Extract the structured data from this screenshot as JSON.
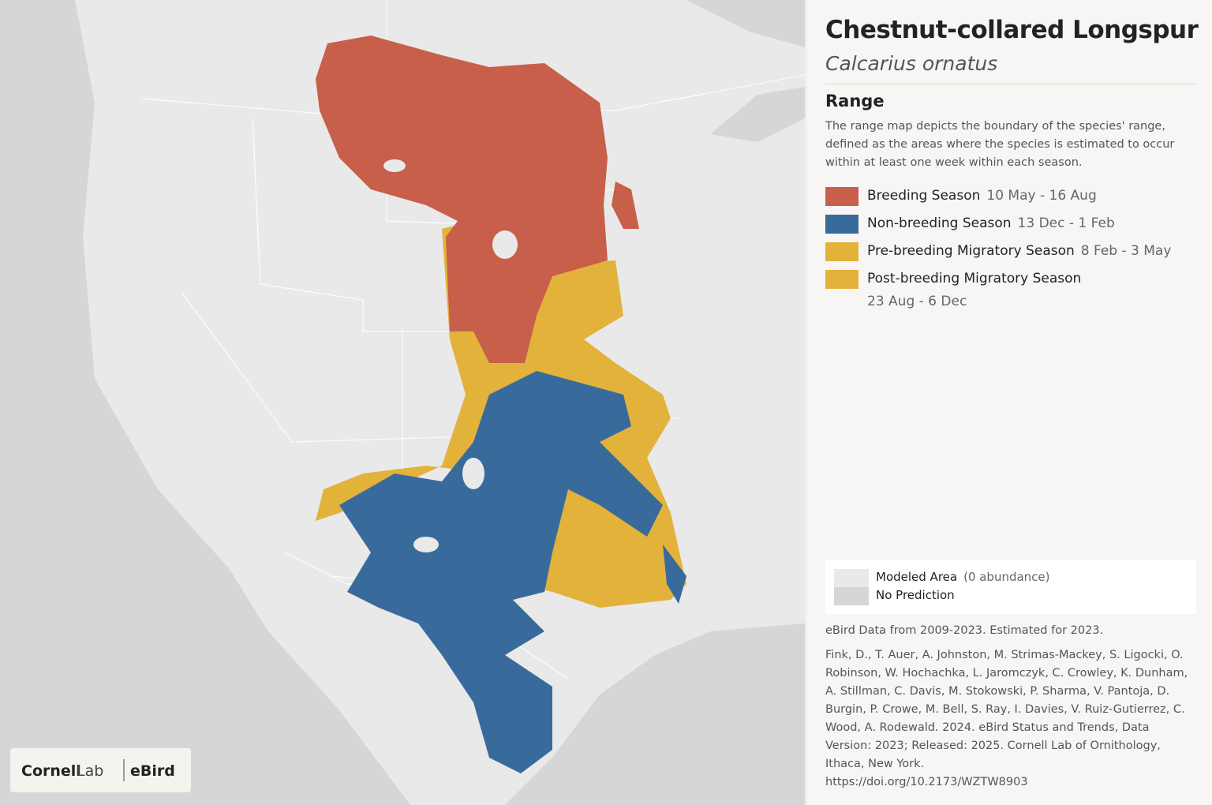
{
  "header": {
    "title": "Chestnut-collared Longspur",
    "subtitle": "Calcarius ornatus"
  },
  "range": {
    "heading": "Range",
    "description": "The range map depicts the boundary of the species' range, defined as the areas where the species is estimated to occur within at least one week within each season."
  },
  "legend": {
    "items": [
      {
        "label": "Breeding Season",
        "dates": "10 May - 16 Aug"
      },
      {
        "label": "Non-breeding Season",
        "dates": "13 Dec - 1 Feb"
      },
      {
        "label": "Pre-breeding Migratory Season",
        "dates": "8 Feb - 3 May"
      },
      {
        "label": "Post-breeding Migratory Season",
        "dates": "23 Aug - 6 Dec"
      }
    ]
  },
  "modeled": {
    "items": [
      {
        "label": "Modeled Area",
        "note": "(0 abundance)"
      },
      {
        "label": "No Prediction"
      }
    ]
  },
  "source": {
    "data": "eBird Data from 2009-2023. Estimated for 2023.",
    "citation": "Fink, D., T. Auer, A. Johnston, M. Strimas-Mackey, S. Ligocki, O. Robinson, W. Hochachka, L. Jaromczyk, C. Crowley, K. Dunham, A. Stillman, C. Davis, M. Stokowski, P. Sharma, V. Pantoja, D. Burgin, P. Crowe, M. Bell, S. Ray, I. Davies, V. Ruiz-Gutierrez, C. Wood, A. Rodewald. 2024. eBird Status and Trends, Data Version: 2023; Released: 2025. Cornell Lab of Ornithology, Ithaca, New York.",
    "doi": "https://doi.org/10.2173/WZTW8903"
  },
  "logo": {
    "cornell": "Cornell",
    "lab": "Lab",
    "ebird": "eBird"
  }
}
